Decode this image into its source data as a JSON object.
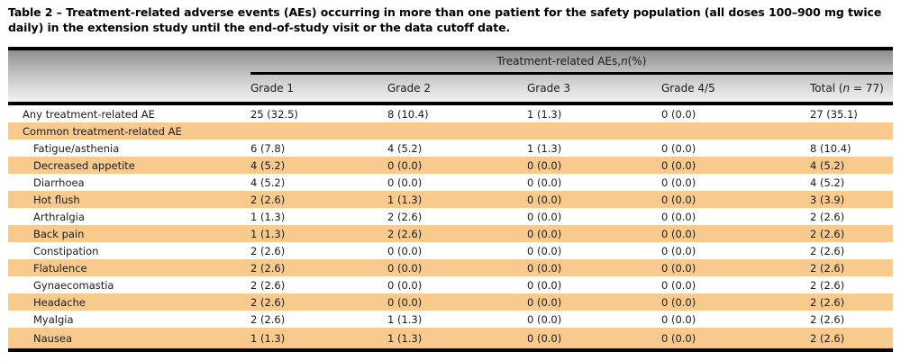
{
  "caption": "Table 2 – Treatment-related adverse events (AEs) occurring in more than one patient for the safety population (all doses 100–900 mg twice daily) in the extension study until the end-of-study visit or the data cutoff date.",
  "colors": {
    "highlight_row": "#F8CA8E",
    "header_gradient_top": "#8F8F8F",
    "header_gradient_bottom": "#F2F2F2",
    "border": "#000000",
    "text": "#1B1B1B"
  },
  "table": {
    "spanner": {
      "pre": "Treatment-related AEs, ",
      "n": "n",
      "post": " (%)"
    },
    "columns": [
      "Grade 1",
      "Grade 2",
      "Grade 3",
      "Grade 4/5"
    ],
    "total_header": {
      "pre": "Total (",
      "n": "n",
      "post": " = 77)"
    },
    "rows": [
      {
        "label": "Any treatment-related AE",
        "indent": false,
        "section": false,
        "values": [
          "25 (32.5)",
          "8 (10.4)",
          "1 (1.3)",
          "0 (0.0)",
          "27 (35.1)"
        ]
      },
      {
        "label": "Common treatment-related AE",
        "indent": false,
        "section": true,
        "values": [
          "",
          "",
          "",
          "",
          ""
        ]
      },
      {
        "label": "Fatigue/asthenia",
        "indent": true,
        "section": false,
        "values": [
          "6 (7.8)",
          "4 (5.2)",
          "1 (1.3)",
          "0 (0.0)",
          "8 (10.4)"
        ]
      },
      {
        "label": "Decreased appetite",
        "indent": true,
        "section": false,
        "values": [
          "4 (5.2)",
          "0 (0.0)",
          "0 (0.0)",
          "0 (0.0)",
          "4 (5.2)"
        ]
      },
      {
        "label": "Diarrhoea",
        "indent": true,
        "section": false,
        "values": [
          "4 (5.2)",
          "0 (0.0)",
          "0 (0.0)",
          "0 (0.0)",
          "4 (5.2)"
        ]
      },
      {
        "label": "Hot flush",
        "indent": true,
        "section": false,
        "values": [
          "2 (2.6)",
          "1 (1.3)",
          "0 (0.0)",
          "0 (0.0)",
          "3 (3.9)"
        ]
      },
      {
        "label": "Arthralgia",
        "indent": true,
        "section": false,
        "values": [
          "1 (1.3)",
          "2 (2.6)",
          "0 (0.0)",
          "0 (0.0)",
          "2 (2.6)"
        ]
      },
      {
        "label": "Back pain",
        "indent": true,
        "section": false,
        "values": [
          "1 (1.3)",
          "2 (2.6)",
          "0 (0.0)",
          "0 (0.0)",
          "2 (2.6)"
        ]
      },
      {
        "label": "Constipation",
        "indent": true,
        "section": false,
        "values": [
          "2 (2.6)",
          "0 (0.0)",
          "0 (0.0)",
          "0 (0.0)",
          "2 (2.6)"
        ]
      },
      {
        "label": "Flatulence",
        "indent": true,
        "section": false,
        "values": [
          "2 (2.6)",
          "0 (0.0)",
          "0 (0.0)",
          "0 (0.0)",
          "2 (2.6)"
        ]
      },
      {
        "label": "Gynaecomastia",
        "indent": true,
        "section": false,
        "values": [
          "2 (2.6)",
          "0 (0.0)",
          "0 (0.0)",
          "0 (0.0)",
          "2 (2.6)"
        ]
      },
      {
        "label": "Headache",
        "indent": true,
        "section": false,
        "values": [
          "2 (2.6)",
          "0 (0.0)",
          "0 (0.0)",
          "0 (0.0)",
          "2 (2.6)"
        ]
      },
      {
        "label": "Myalgia",
        "indent": true,
        "section": false,
        "values": [
          "2 (2.6)",
          "1 (1.3)",
          "0 (0.0)",
          "0 (0.0)",
          "2 (2.6)"
        ]
      },
      {
        "label": "Nausea",
        "indent": true,
        "section": false,
        "values": [
          "1 (1.3)",
          "1 (1.3)",
          "0 (0.0)",
          "0 (0.0)",
          "2 (2.6)"
        ]
      }
    ]
  }
}
